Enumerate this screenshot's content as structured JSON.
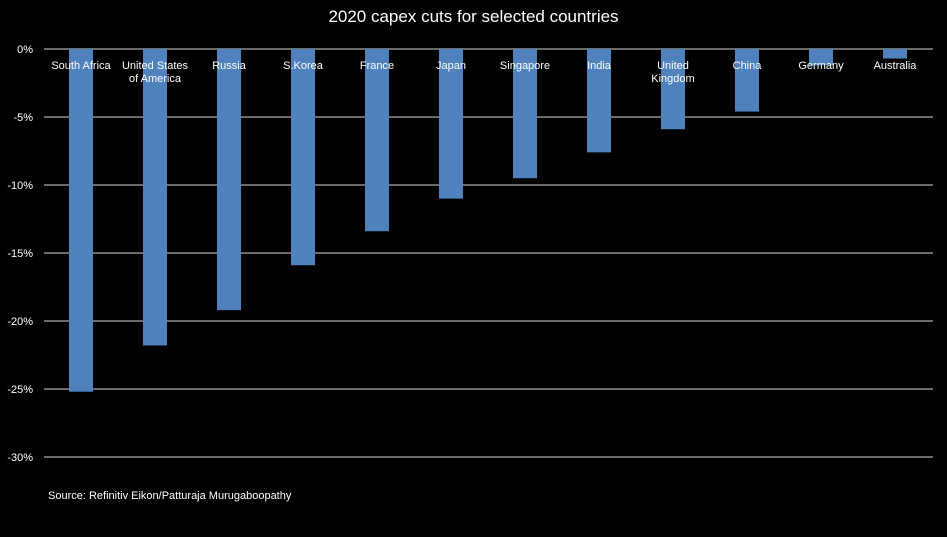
{
  "chart_data": {
    "type": "bar",
    "title": "2020 capex cuts for selected countries",
    "categories": [
      [
        "South Africa"
      ],
      [
        "United States",
        "of America"
      ],
      [
        "Russia"
      ],
      [
        "S.Korea"
      ],
      [
        "France"
      ],
      [
        "Japan"
      ],
      [
        "Singapore"
      ],
      [
        "India"
      ],
      [
        "United",
        "Kingdom"
      ],
      [
        "China"
      ],
      [
        "Germany"
      ],
      [
        "Australia"
      ]
    ],
    "values": [
      -25.2,
      -21.8,
      -19.2,
      -15.9,
      -13.4,
      -11.0,
      -9.5,
      -7.6,
      -5.9,
      -4.6,
      -1.2,
      -0.7
    ],
    "ylim": [
      -30,
      0
    ],
    "yticks": [
      0,
      -5,
      -10,
      -15,
      -20,
      -25,
      -30
    ],
    "ytick_labels": [
      "0%",
      "-5%",
      "-10%",
      "-15%",
      "-20%",
      "-25%",
      "-30%"
    ],
    "grid": true,
    "legend": "none",
    "xlabel": "",
    "ylabel": "",
    "bar_color": "#4F81BD",
    "background_color": "#000000"
  },
  "source": "Source: Refinitiv Eikon/Patturaja Murugaboopathy"
}
